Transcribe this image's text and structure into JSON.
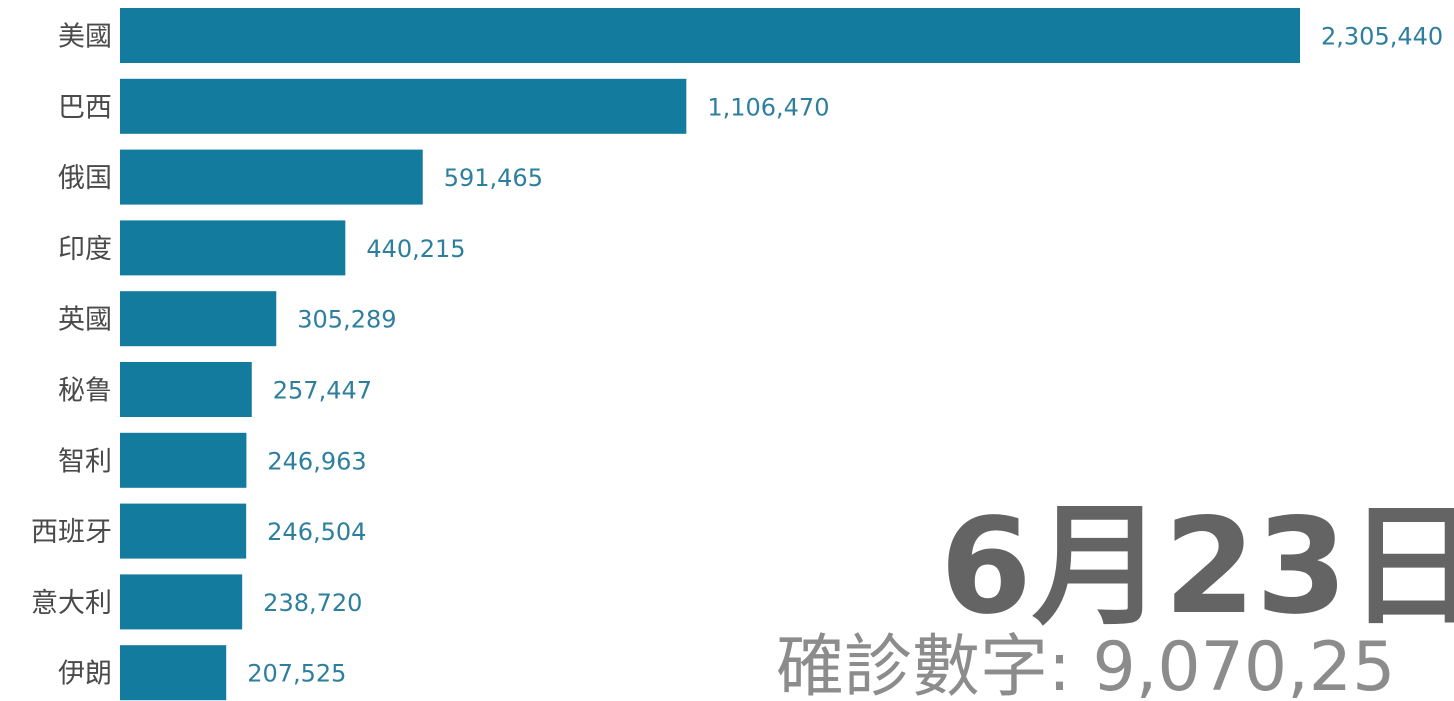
{
  "chart_data": {
    "type": "bar",
    "orientation": "horizontal",
    "categories": [
      "美國",
      "巴西",
      "俄国",
      "印度",
      "英國",
      "秘鲁",
      "智利",
      "西班牙",
      "意大利",
      "伊朗"
    ],
    "values": [
      2305440,
      1106470,
      591465,
      440215,
      305289,
      257447,
      246963,
      246504,
      238720,
      207525
    ],
    "value_labels": [
      "2,305,440",
      "1,106,470",
      "591,465",
      "440,215",
      "305,289",
      "257,447",
      "246,963",
      "246,504",
      "238,720",
      "207,525"
    ],
    "bar_color": "#137b9e",
    "value_label_color": "#2e7f9e",
    "date": "6月23日",
    "total_label": "確診數字: 9,070,25",
    "title": "",
    "xlabel": "",
    "ylabel": "",
    "grid": false
  }
}
